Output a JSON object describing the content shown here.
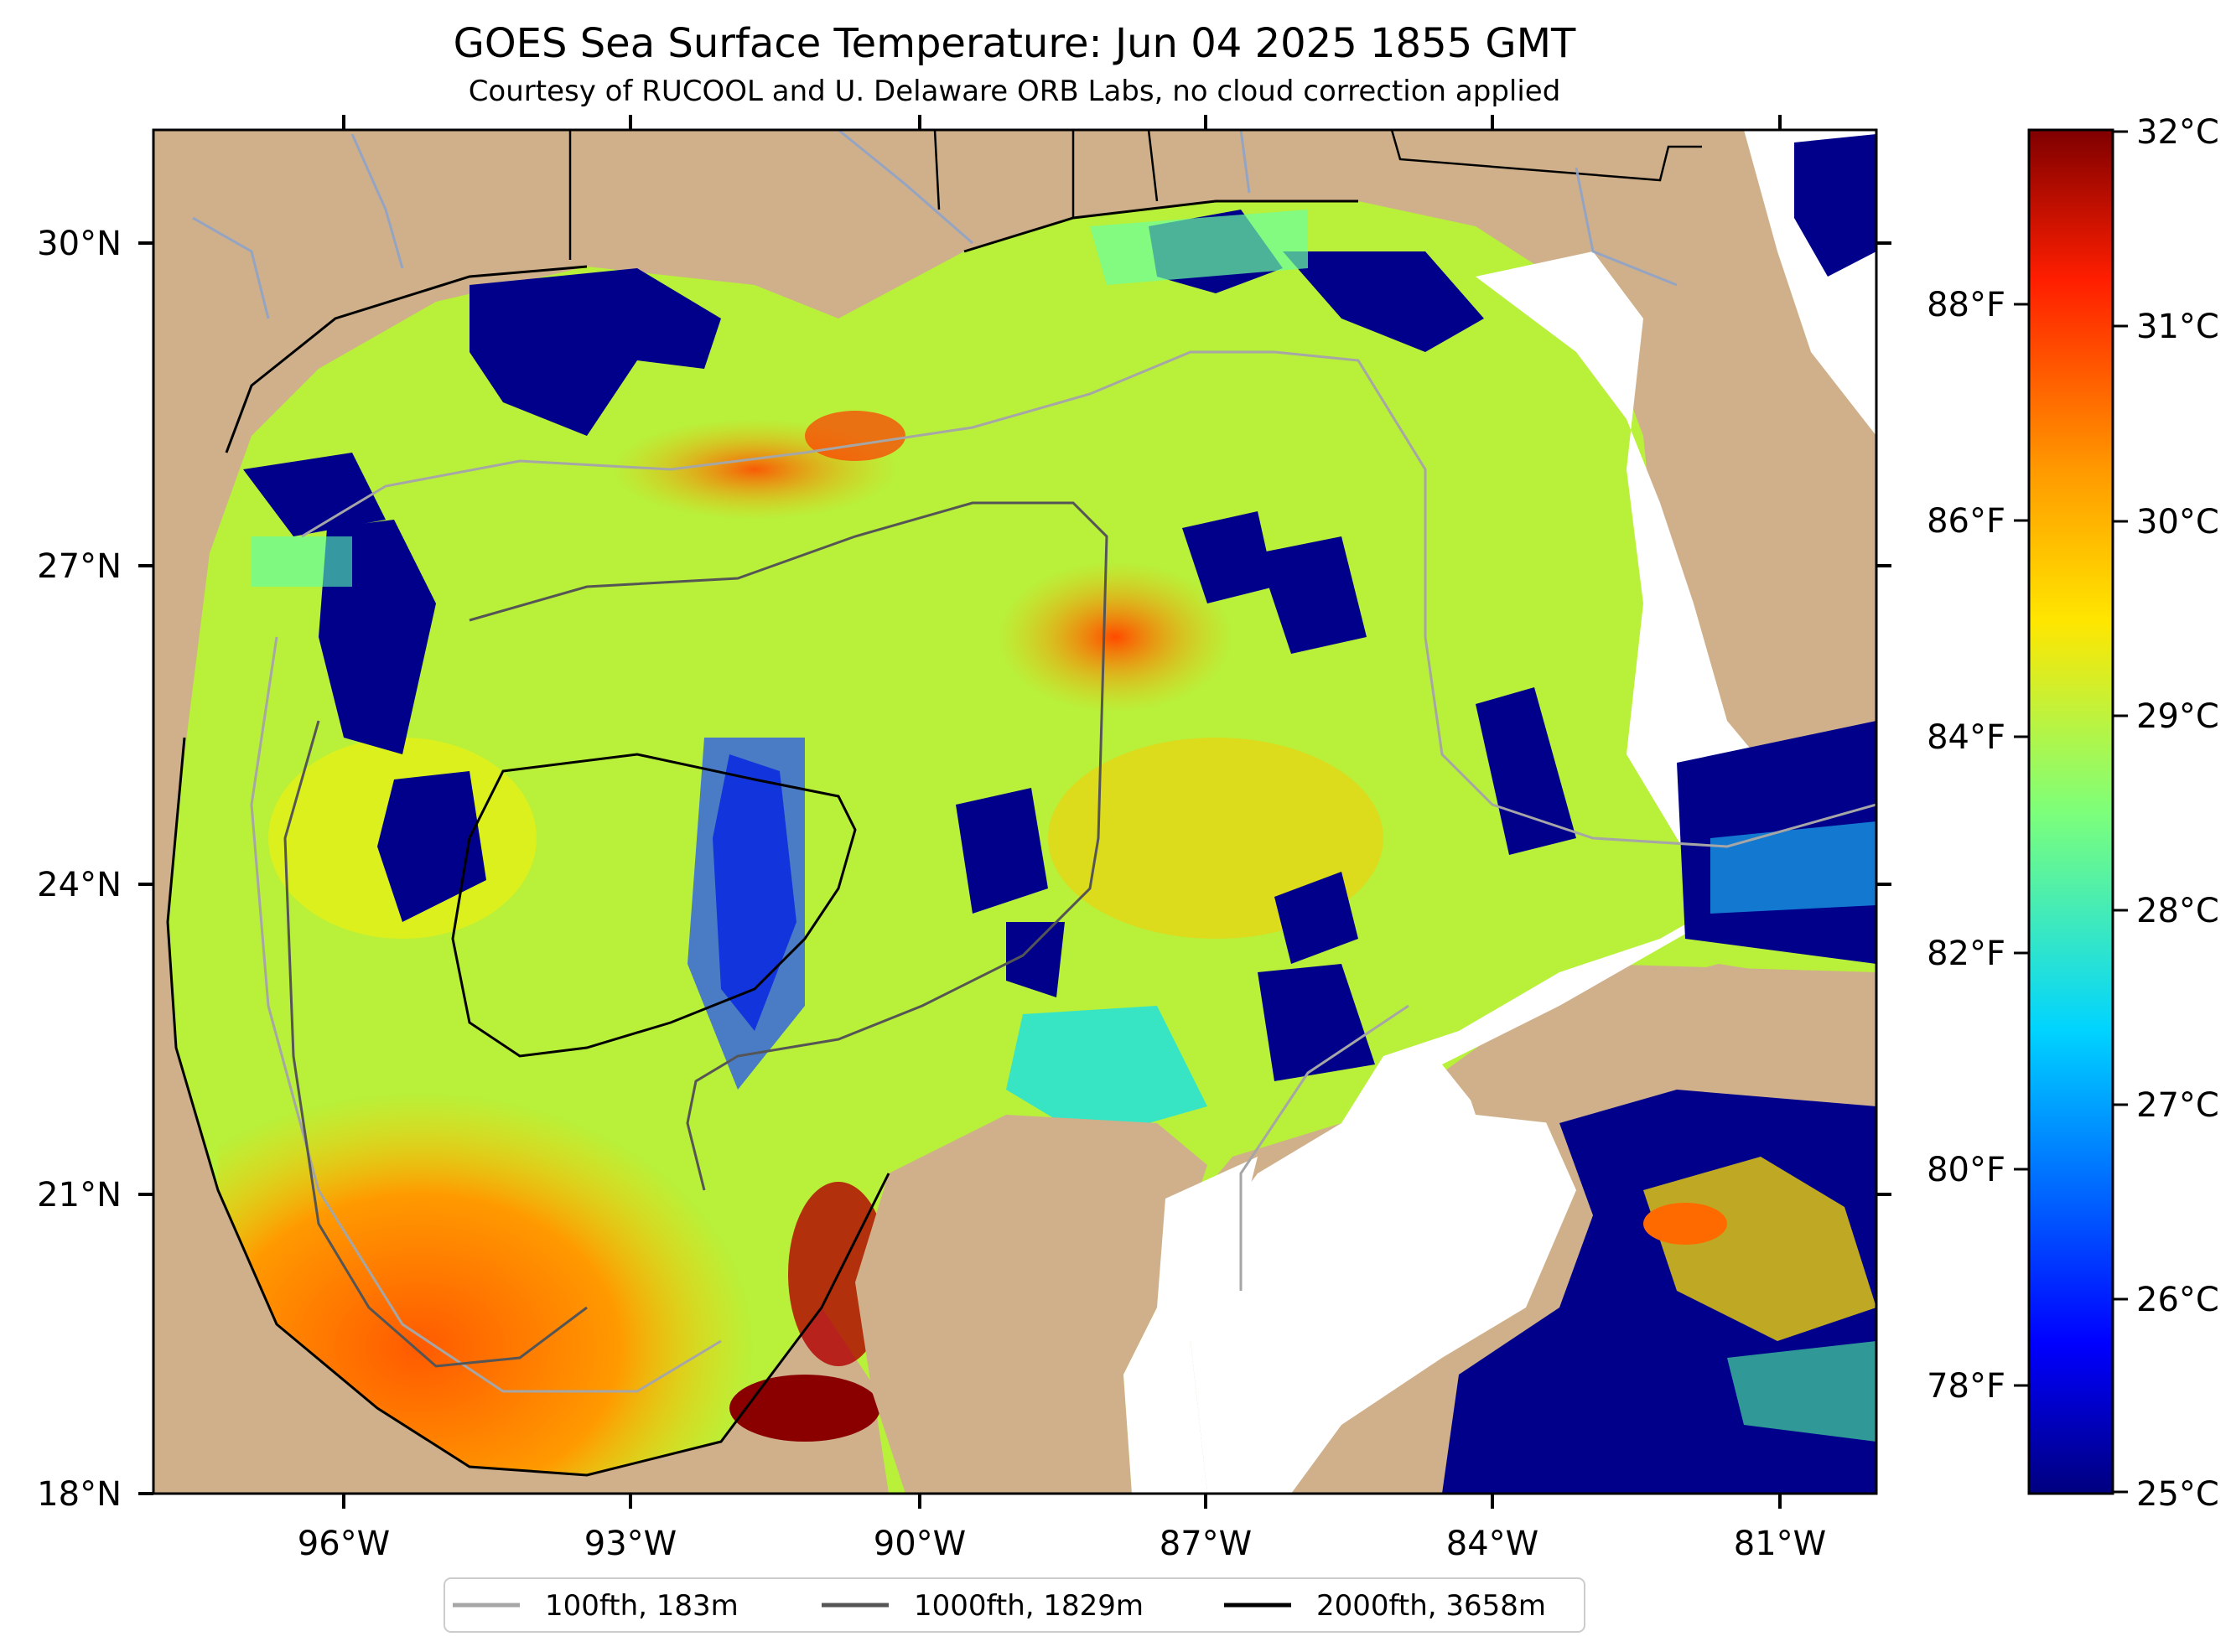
{
  "title": "GOES Sea Surface Temperature: Jun 04 2025 1855 GMT",
  "subtitle": "Courtesy of RUCOOL and U. Delaware ORB Labs, no cloud correction applied",
  "map": {
    "projection": "lat-lon",
    "lon_range": [
      -98,
      -80
    ],
    "lat_range": [
      18,
      31
    ],
    "lon_ticks": [
      "96°W",
      "93°W",
      "90°W",
      "87°W",
      "84°W",
      "81°W"
    ],
    "lat_ticks": [
      "30°N",
      "27°N",
      "24°N",
      "21°N",
      "18°N"
    ],
    "land_color": "#cfb08a",
    "no_data_color": "#ffffff"
  },
  "colorbar": {
    "celsius_ticks": [
      "32°C",
      "31°C",
      "30°C",
      "29°C",
      "28°C",
      "27°C",
      "26°C",
      "25°C"
    ],
    "fahrenheit_ticks": [
      "88°F",
      "86°F",
      "84°F",
      "82°F",
      "80°F",
      "78°F"
    ],
    "range_c": [
      25,
      32
    ],
    "colormap": "jet"
  },
  "legend": {
    "items": [
      {
        "label": "100fth, 183m",
        "color": "#a6a6a6"
      },
      {
        "label": "1000fth, 1829m",
        "color": "#555555"
      },
      {
        "label": "2000fth, 3658m",
        "color": "#000000"
      }
    ]
  }
}
